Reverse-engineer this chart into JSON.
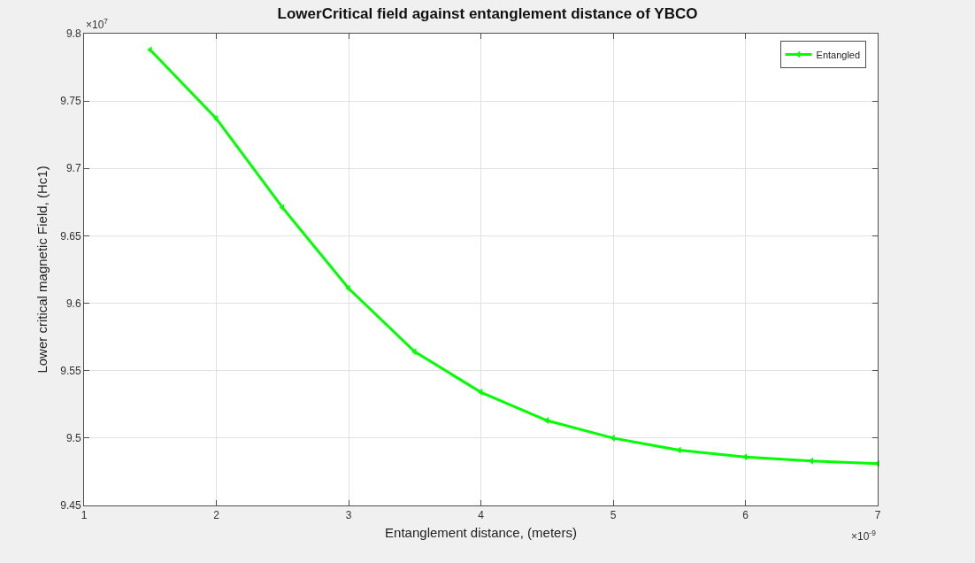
{
  "chart_data": {
    "type": "line",
    "title": "LowerCritical field against entanglement distance of YBCO",
    "xlabel": "Entanglement distance, (meters)",
    "ylabel": "Lower critical magnetic Field, (Hc1)",
    "x": [
      1.5,
      2,
      2.5,
      3,
      3.5,
      4,
      4.5,
      5,
      5.5,
      6,
      6.5,
      7
    ],
    "series": [
      {
        "name": "Entangled",
        "color": "#00ff00",
        "values": [
          9.788,
          9.737,
          9.671,
          9.611,
          9.564,
          9.534,
          9.513,
          9.5,
          9.491,
          9.486,
          9.483,
          9.481
        ]
      }
    ],
    "xlim": [
      1,
      7
    ],
    "xticks": [
      1,
      2,
      3,
      4,
      5,
      6,
      7
    ],
    "ylim": [
      9.45,
      9.8
    ],
    "yticks": [
      9.45,
      9.5,
      9.55,
      9.6,
      9.65,
      9.7,
      9.75,
      9.8
    ],
    "annotations": [
      "×10$^{7}$",
      "×10$^{-9}$"
    ],
    "grid": true,
    "legend": "top right",
    "marker": "triangle",
    "line_style": "solid"
  }
}
